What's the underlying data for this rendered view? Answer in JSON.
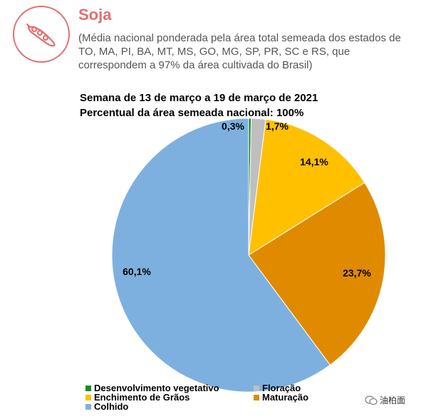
{
  "header": {
    "title": "Soja",
    "subtitle": "(Média nacional ponderada pela área total semeada dos estados de TO, MA, PI, BA, MT, MS, GO, MG, SP, PR, SC e RS, que correspondem a 97% da área cultivada do Brasil)",
    "logo_icon": "soybean-pod-icon",
    "accent_color": "#e46f6f"
  },
  "chart_data": {
    "type": "pie",
    "title": "Semana de 13 de março a 19 de março de 2021",
    "subtitle": "Percentual da área semeada nacional: 100%",
    "slices": [
      {
        "name": "Desenvolvimento vegetativo",
        "value": 0.3,
        "label": "0,3%",
        "color": "#1a8a2a"
      },
      {
        "name": "Floração",
        "value": 1.7,
        "label": "1,7%",
        "color": "#bfbfbf"
      },
      {
        "name": "Enchimento de Grãos",
        "value": 14.1,
        "label": "14,1%",
        "color": "#ffc000"
      },
      {
        "name": "Maturação",
        "value": 23.7,
        "label": "23,7%",
        "color": "#e08a00"
      },
      {
        "name": "Colhido",
        "value": 60.1,
        "label": "60,1%",
        "color": "#7eb0df"
      }
    ],
    "legend_position": "bottom"
  },
  "watermark": {
    "text": "油柏面",
    "icon": "wechat-icon"
  }
}
